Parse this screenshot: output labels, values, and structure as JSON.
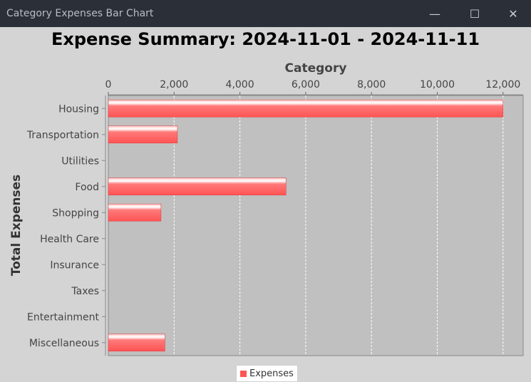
{
  "window": {
    "title": "Category Expenses Bar Chart",
    "minimize_glyph": "—",
    "maximize_glyph": "☐",
    "close_glyph": "✕"
  },
  "chart_data": {
    "type": "bar",
    "orientation": "horizontal",
    "title": "Expense Summary: 2024-11-01 - 2024-11-11",
    "xlabel": "Category",
    "ylabel": "Total Expenses",
    "categories": [
      "Housing",
      "Transportation",
      "Utilities",
      "Food",
      "Shopping",
      "Health Care",
      "Insurance",
      "Taxes",
      "Entertainment",
      "Miscellaneous"
    ],
    "series": [
      {
        "name": "Expenses",
        "values": [
          12000,
          2100,
          0,
          5400,
          1600,
          0,
          0,
          0,
          0,
          1720
        ],
        "color": "#ff5555"
      }
    ],
    "xlim": [
      0,
      12500
    ],
    "ticks": [
      0,
      2000,
      4000,
      6000,
      8000,
      10000,
      12000
    ],
    "tick_labels": [
      "0",
      "2,000",
      "4,000",
      "6,000",
      "8,000",
      "10,000",
      "12,000"
    ],
    "value_axis_position": "top",
    "grid": true,
    "legend": "bottom-center",
    "plot_background": "#c0c0c0"
  }
}
